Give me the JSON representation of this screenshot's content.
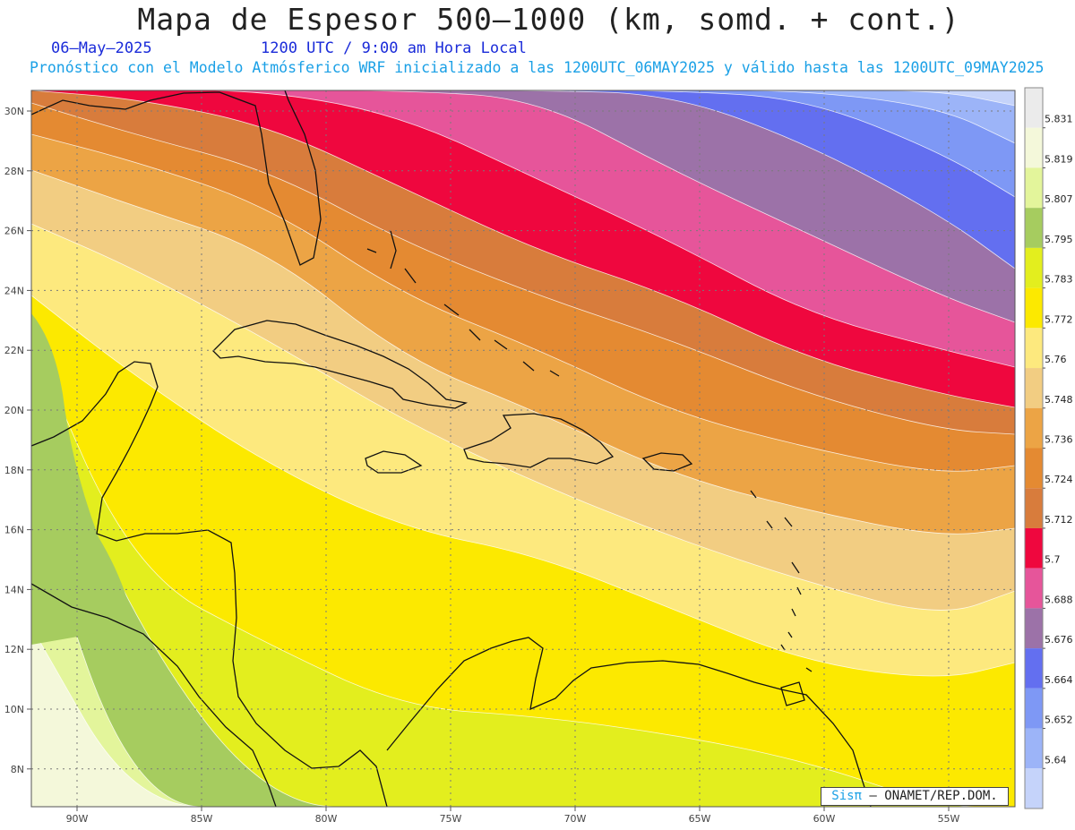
{
  "header": {
    "title": "Mapa de Espesor 500—1000 (km, somd. + cont.)",
    "date": "06—May—2025",
    "time": "1200 UTC / 9:00 am Hora Local",
    "forecast": "Pronóstico con el Modelo Atmósferico WRF inicializado a las 1200UTC_06MAY2025 y válido hasta las  1200UTC_09MAY2025"
  },
  "axes": {
    "lat_ticks": [
      "30N",
      "28N",
      "26N",
      "24N",
      "22N",
      "20N",
      "18N",
      "16N",
      "14N",
      "12N",
      "10N",
      "8N"
    ],
    "lon_ticks": [
      "90W",
      "85W",
      "80W",
      "75W",
      "70W",
      "65W",
      "60W",
      "55W"
    ]
  },
  "colorbar": {
    "labels": [
      "5.831",
      "5.819",
      "5.807",
      "5.795",
      "5.783",
      "5.772",
      "5.76",
      "5.748",
      "5.736",
      "5.724",
      "5.712",
      "5.7",
      "5.688",
      "5.676",
      "5.664",
      "5.652",
      "5.64"
    ],
    "colors": [
      "#ebebeb",
      "#f4f8da",
      "#e3f59b",
      "#a6cc5f",
      "#e3ee1e",
      "#fce900",
      "#fde97e",
      "#f2cd82",
      "#eca445",
      "#e48a32",
      "#d87c3c",
      "#ef073e",
      "#e6559a",
      "#9c72a8",
      "#636ff0",
      "#7e98f5",
      "#9cb4f8",
      "#c5d3fa"
    ]
  },
  "credit": {
    "logo": "Sisπ",
    "text": "— ONAMET/REP.DOM."
  }
}
